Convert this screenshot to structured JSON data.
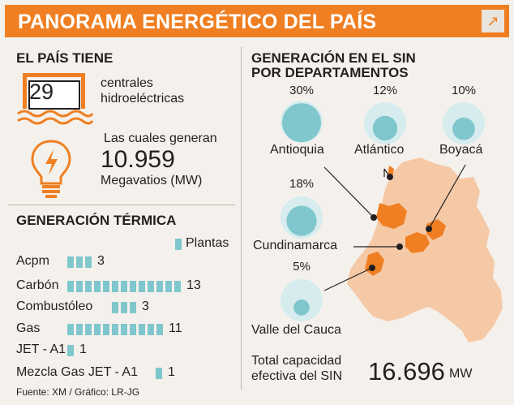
{
  "header": {
    "title": "PANORAMA ENERGÉTICO DEL PAÍS",
    "share_icon": "arrow-up-right-icon"
  },
  "hydro": {
    "section_title": "EL PAÍS TIENE",
    "count": "29",
    "count_label_line1": "centrales",
    "count_label_line2": "hidroeléctricas",
    "generate_text": "Las cuales generan",
    "mw_value": "10.959",
    "mw_unit": "Megavatios (MW)"
  },
  "thermal": {
    "section_title": "GENERACIÓN TÉRMICA",
    "legend_label": "Plantas",
    "legend_color": "#7fc7cc"
  },
  "chart_data": [
    {
      "type": "bar",
      "title": "GENERACIÓN TÉRMICA",
      "categories": [
        "Acpm",
        "Carbón",
        "Combustóleo",
        "Gas",
        "JET - A1",
        "Mezcla Gas JET - A1"
      ],
      "series": [
        {
          "name": "Plantas",
          "values": [
            3,
            13,
            3,
            11,
            1,
            1
          ]
        }
      ],
      "legend": "top-right",
      "grid": false
    },
    {
      "type": "bubble",
      "title": "GENERACIÓN EN EL SIN POR DEPARTAMENTOS",
      "categories": [
        "Antioquia",
        "Atlántico",
        "Boyacá",
        "Cundinamarca",
        "Valle del Cauca"
      ],
      "values": [
        30,
        12,
        10,
        18,
        5
      ],
      "labels": [
        "30%",
        "12%",
        "10%",
        "18%",
        "5%"
      ],
      "unit": "%"
    }
  ],
  "sin": {
    "section_title_line1": "GENERACIÓN EN EL SIN",
    "section_title_line2": "POR DEPARTAMENTOS",
    "total_label_line1": "Total capacidad",
    "total_label_line2": "efectiva del SIN",
    "total_value": "16.696",
    "total_unit": "MW"
  },
  "colors": {
    "accent": "#ef7f22",
    "bubble_fill": "#7fc7cc",
    "bubble_outer": "#d6ecee",
    "map_land": "#f6c9a6",
    "map_highlight": "#ef7f22"
  },
  "footer": {
    "source": "Fuente: XM / Gráfico: LR-JG"
  }
}
